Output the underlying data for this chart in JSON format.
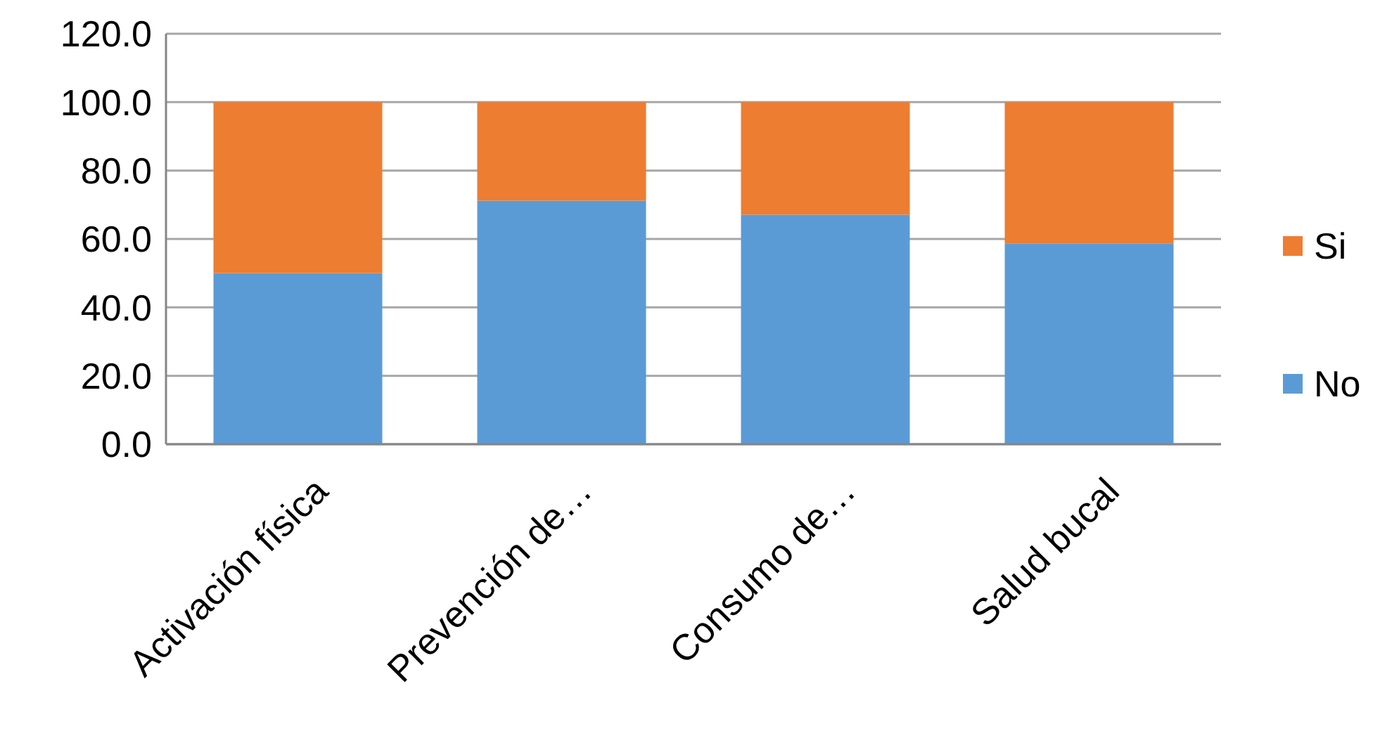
{
  "chart_data": {
    "type": "bar",
    "stacked": true,
    "categories": [
      "Activación física",
      "Prevención de…",
      "Consumo de…",
      "Salud bucal"
    ],
    "series": [
      {
        "name": "No",
        "color": "#5b9bd5",
        "values": [
          50.0,
          71.2,
          67.1,
          58.6
        ]
      },
      {
        "name": "Si",
        "color": "#ed7d31",
        "values": [
          50.0,
          28.8,
          32.9,
          41.4
        ]
      }
    ],
    "ylim": [
      0,
      120
    ],
    "yticks": [
      {
        "value": 0,
        "label": "0.0"
      },
      {
        "value": 20,
        "label": "20.0"
      },
      {
        "value": 40,
        "label": "40.0"
      },
      {
        "value": 60,
        "label": "60.0"
      },
      {
        "value": 80,
        "label": "80.0"
      },
      {
        "value": 100,
        "label": "100.0"
      },
      {
        "value": 120,
        "label": "120.0"
      }
    ],
    "grid": "y",
    "legend": "right"
  }
}
